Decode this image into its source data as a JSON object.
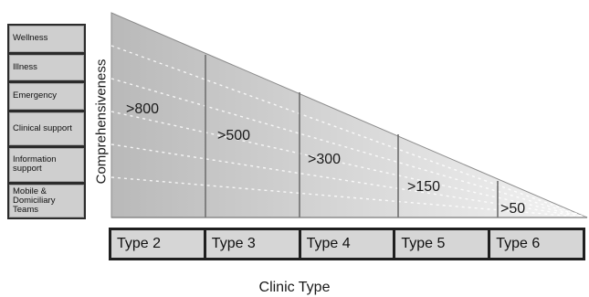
{
  "services": [
    {
      "label": "Wellness"
    },
    {
      "label": "Illness"
    },
    {
      "label": "Emergency"
    },
    {
      "label": "Clinical support"
    },
    {
      "label": "Information support"
    },
    {
      "label": "Mobile & Domiciliary Teams"
    }
  ],
  "y_axis_label": "Comprehensiveness",
  "x_axis_label": "Clinic Type",
  "clinic_types": [
    {
      "label": "Type 2",
      "threshold": ">800"
    },
    {
      "label": "Type 3",
      "threshold": ">500"
    },
    {
      "label": "Type 4",
      "threshold": ">300"
    },
    {
      "label": "Type 5",
      "threshold": ">150"
    },
    {
      "label": "Type 6",
      "threshold": ">50"
    }
  ],
  "colors": {
    "panel": "#2b2b2b",
    "cell": "#d6d6d6",
    "divider": "#6e6e6e"
  }
}
